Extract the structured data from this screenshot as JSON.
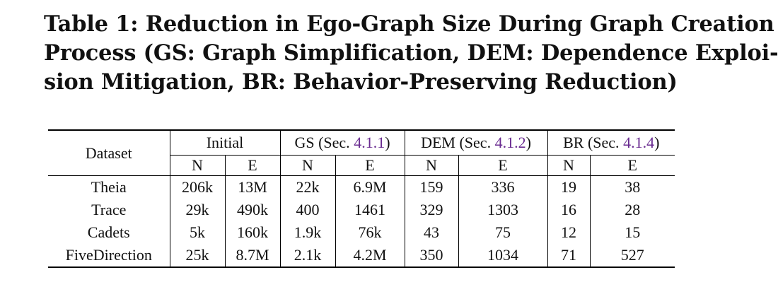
{
  "caption": {
    "lines": [
      "Table 1: Reduction in Ego-Graph Size During Graph Creation",
      "Process (GS: Graph Simplification, DEM: Dependence Exploi-",
      "sion Mitigation, BR: Behavior-Preserving Reduction)"
    ]
  },
  "table": {
    "dataset_header": "Dataset",
    "groups": [
      {
        "label": "Initial",
        "ref": ""
      },
      {
        "label": "GS (Sec. ",
        "ref": "4.1.1",
        "close": ")"
      },
      {
        "label": "DEM (Sec. ",
        "ref": "4.1.2",
        "close": ")"
      },
      {
        "label": "BR (Sec. ",
        "ref": "4.1.4",
        "close": ")"
      }
    ],
    "sub_headers": [
      "N",
      "E"
    ],
    "rows": [
      {
        "dataset": "Theia",
        "values": [
          "206k",
          "13M",
          "22k",
          "6.9M",
          "159",
          "336",
          "19",
          "38"
        ]
      },
      {
        "dataset": "Trace",
        "values": [
          "29k",
          "490k",
          "400",
          "1461",
          "329",
          "1303",
          "16",
          "28"
        ]
      },
      {
        "dataset": "Cadets",
        "values": [
          "5k",
          "160k",
          "1.9k",
          "76k",
          "43",
          "75",
          "12",
          "15"
        ]
      },
      {
        "dataset": "FiveDirection",
        "values": [
          "25k",
          "8.7M",
          "2.1k",
          "4.2M",
          "350",
          "1034",
          "71",
          "527"
        ]
      }
    ]
  }
}
